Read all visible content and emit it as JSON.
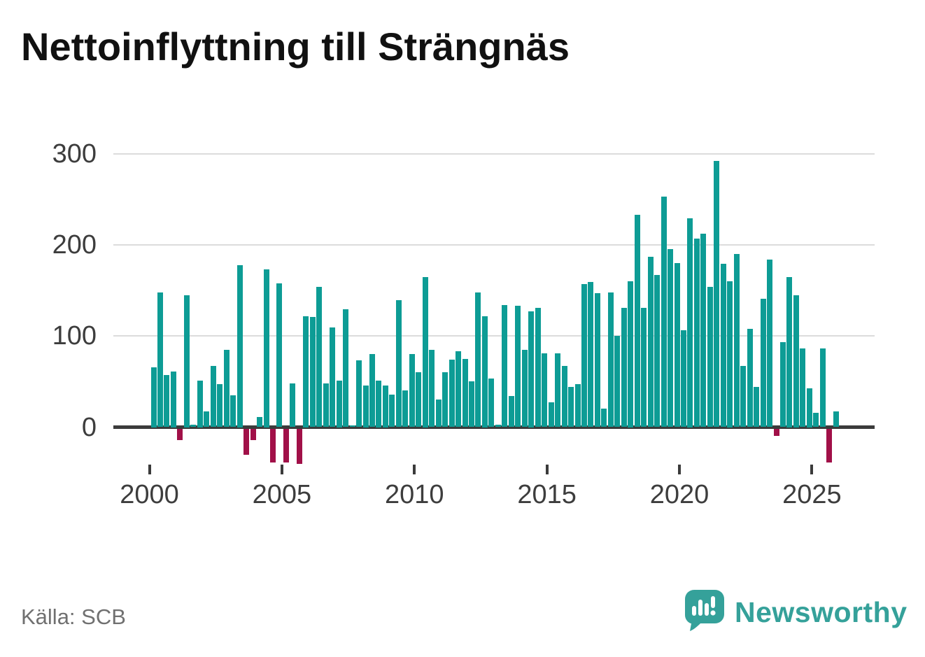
{
  "header": {
    "title": "Nettoinflyttning till Strängnäs"
  },
  "footer": {
    "source": "Källa: SCB",
    "brand": "Newsworthy"
  },
  "colors": {
    "positive": "#0d9c95",
    "negative": "#a11048",
    "axis": "#3b3b3b",
    "grid": "#dcdcdc",
    "label": "#3d3d3d",
    "source_text": "#707070",
    "brand_teal": "#35a19a",
    "title_text": "#111111"
  },
  "chart_data": {
    "type": "bar",
    "title": "Nettoinflyttning till Strängnäs",
    "source": "Källa: SCB",
    "x_start": "2000-Q1",
    "frequency": "quarterly",
    "xlabel": "",
    "ylabel": "",
    "ylim": [
      -50,
      310
    ],
    "grid": "horizontal",
    "yticks": [
      0,
      100,
      200,
      300
    ],
    "xticks": [
      2000,
      2005,
      2010,
      2015,
      2020,
      2025
    ],
    "values": [
      66,
      148,
      57,
      61,
      -12,
      145,
      3,
      51,
      17,
      67,
      47,
      85,
      35,
      178,
      -28,
      -12,
      11,
      173,
      -37,
      158,
      -37,
      48,
      -38,
      122,
      121,
      154,
      48,
      109,
      51,
      129,
      2,
      73,
      46,
      80,
      51,
      46,
      36,
      139,
      40,
      80,
      60,
      165,
      85,
      30,
      60,
      74,
      83,
      75,
      50,
      148,
      122,
      53,
      3,
      134,
      34,
      133,
      85,
      127,
      131,
      81,
      27,
      81,
      67,
      44,
      47,
      157,
      159,
      147,
      20,
      148,
      100,
      131,
      160,
      233,
      131,
      187,
      167,
      253,
      195,
      180,
      106,
      229,
      207,
      212,
      154,
      292,
      179,
      160,
      190,
      67,
      108,
      44,
      141,
      184,
      -8,
      93,
      165,
      145,
      86,
      43,
      16,
      86,
      -37,
      17
    ]
  }
}
